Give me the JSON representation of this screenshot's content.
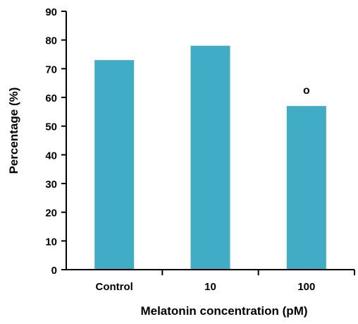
{
  "chart_data": {
    "type": "bar",
    "categories": [
      "Control",
      "10",
      "100"
    ],
    "values": [
      73,
      78,
      57
    ],
    "annotations": [
      "",
      "",
      "o"
    ],
    "xlabel": "Melatonin concentration (pM)",
    "ylabel": "Percentage (%)",
    "ylim": [
      0,
      90
    ],
    "yticks": [
      0,
      10,
      20,
      30,
      40,
      50,
      60,
      70,
      80,
      90
    ],
    "grid": false,
    "bar_color": "#41acc6",
    "axis_color": "#000000"
  }
}
